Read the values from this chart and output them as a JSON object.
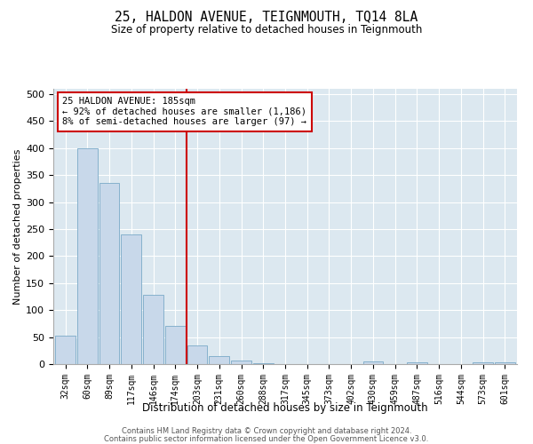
{
  "title": "25, HALDON AVENUE, TEIGNMOUTH, TQ14 8LA",
  "subtitle": "Size of property relative to detached houses in Teignmouth",
  "xlabel": "Distribution of detached houses by size in Teignmouth",
  "ylabel": "Number of detached properties",
  "bar_color": "#c8d8ea",
  "bar_edge_color": "#7aaac8",
  "background_color": "#dce8f0",
  "grid_color": "#ffffff",
  "categories": [
    "32sqm",
    "60sqm",
    "89sqm",
    "117sqm",
    "146sqm",
    "174sqm",
    "203sqm",
    "231sqm",
    "260sqm",
    "288sqm",
    "317sqm",
    "345sqm",
    "373sqm",
    "402sqm",
    "430sqm",
    "459sqm",
    "487sqm",
    "516sqm",
    "544sqm",
    "573sqm",
    "601sqm"
  ],
  "values": [
    52,
    400,
    336,
    240,
    128,
    70,
    35,
    15,
    6,
    2,
    0,
    0,
    0,
    0,
    5,
    0,
    3,
    0,
    0,
    4,
    3
  ],
  "vline_x": 5.5,
  "vline_color": "#cc0000",
  "annotation_text": "25 HALDON AVENUE: 185sqm\n← 92% of detached houses are smaller (1,186)\n8% of semi-detached houses are larger (97) →",
  "annotation_box_color": "#ffffff",
  "annotation_box_edge": "#cc0000",
  "ylim": [
    0,
    510
  ],
  "yticks": [
    0,
    50,
    100,
    150,
    200,
    250,
    300,
    350,
    400,
    450,
    500
  ],
  "footer_line1": "Contains HM Land Registry data © Crown copyright and database right 2024.",
  "footer_line2": "Contains public sector information licensed under the Open Government Licence v3.0."
}
